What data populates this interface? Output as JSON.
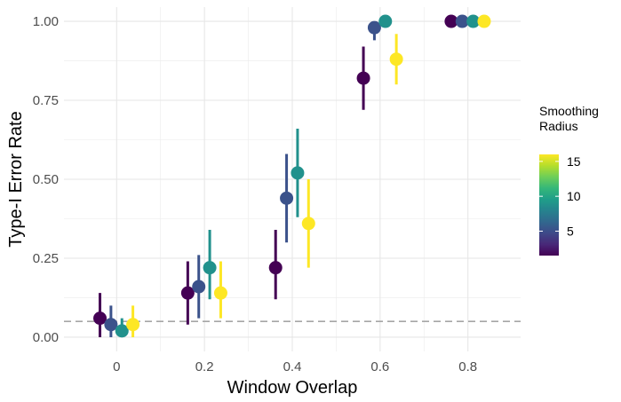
{
  "chart_data": {
    "type": "scatter",
    "xlabel": "Window Overlap",
    "ylabel": "Type-I Error Rate",
    "xlim": [
      -0.12,
      0.92
    ],
    "ylim": [
      -0.045,
      1.045
    ],
    "x_ticks": [
      0,
      0.2,
      0.4,
      0.6,
      0.8
    ],
    "x_tick_labels": [
      "0",
      "0.2",
      "0.4",
      "0.6",
      "0.8"
    ],
    "y_ticks": [
      0,
      0.25,
      0.5,
      0.75,
      1
    ],
    "y_tick_labels": [
      "0.00",
      "0.25",
      "0.50",
      "0.75",
      "1.00"
    ],
    "grid": true,
    "reference_line": {
      "y": 0.05,
      "style": "dashed",
      "color": "#a6a6a6"
    },
    "legend": {
      "title_lines": [
        "Smoothing",
        "Radius"
      ],
      "type": "colorbar",
      "min": 1.5,
      "max": 16,
      "ticks": [
        5,
        10,
        15
      ],
      "tick_labels": [
        "5",
        "10",
        "15"
      ],
      "placement": "right",
      "palette": [
        "#440154",
        "#482878",
        "#3e4989",
        "#31688e",
        "#26828e",
        "#1f9e89",
        "#35b779",
        "#6ece58",
        "#b5de2b",
        "#fde725"
      ]
    },
    "series": [
      {
        "radius": 2,
        "color": "#440154",
        "x": [
          -0.038,
          0.162,
          0.362,
          0.562,
          0.762
        ],
        "y": [
          0.06,
          0.14,
          0.22,
          0.82,
          1.0
        ],
        "lower": [
          0.0,
          0.04,
          0.12,
          0.72,
          1.0
        ],
        "upper": [
          0.14,
          0.24,
          0.34,
          0.92,
          1.0
        ]
      },
      {
        "radius": 6,
        "color": "#3b528b",
        "x": [
          -0.013,
          0.187,
          0.387,
          0.587,
          0.787
        ],
        "y": [
          0.04,
          0.16,
          0.44,
          0.98,
          1.0
        ],
        "lower": [
          0.0,
          0.06,
          0.3,
          0.94,
          1.0
        ],
        "upper": [
          0.1,
          0.26,
          0.58,
          1.0,
          1.0
        ]
      },
      {
        "radius": 10,
        "color": "#21918c",
        "x": [
          0.012,
          0.212,
          0.412,
          0.612,
          0.812
        ],
        "y": [
          0.02,
          0.22,
          0.52,
          1.0,
          1.0
        ],
        "lower": [
          0.0,
          0.12,
          0.38,
          1.0,
          1.0
        ],
        "upper": [
          0.06,
          0.34,
          0.66,
          1.0,
          1.0
        ]
      },
      {
        "radius": 16,
        "color": "#fde725",
        "x": [
          0.037,
          0.237,
          0.437,
          0.637,
          0.837
        ],
        "y": [
          0.04,
          0.14,
          0.36,
          0.88,
          1.0
        ],
        "lower": [
          0.0,
          0.06,
          0.22,
          0.8,
          1.0
        ],
        "upper": [
          0.1,
          0.24,
          0.5,
          0.96,
          1.0
        ]
      }
    ]
  }
}
